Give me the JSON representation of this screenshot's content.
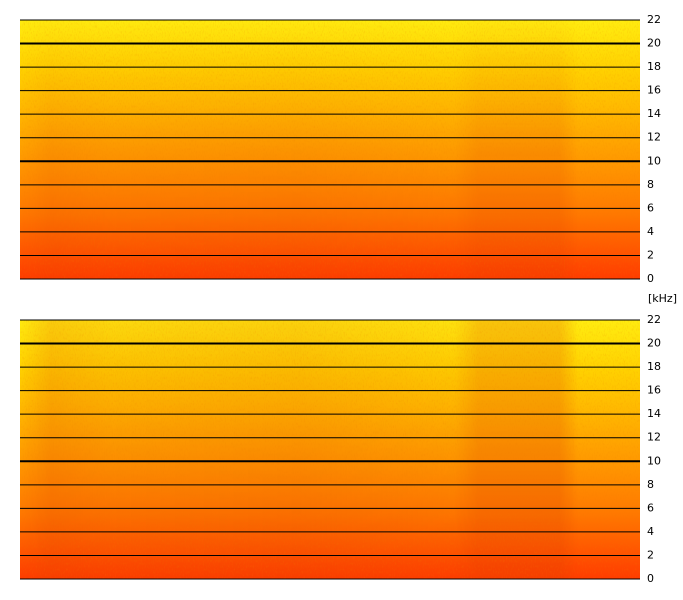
{
  "unit_label": "[kHz]",
  "chart_data": [
    {
      "type": "spectrogram",
      "ylim": [
        0,
        22
      ],
      "yticks": [
        0,
        2,
        4,
        6,
        8,
        10,
        12,
        14,
        16,
        18,
        20,
        22
      ],
      "emphasized_ticks": [
        10,
        20
      ]
    },
    {
      "type": "spectrogram",
      "ylim": [
        0,
        22
      ],
      "yticks": [
        0,
        2,
        4,
        6,
        8,
        10,
        12,
        14,
        16,
        18,
        20,
        22
      ],
      "emphasized_ticks": [
        10,
        20
      ]
    }
  ]
}
